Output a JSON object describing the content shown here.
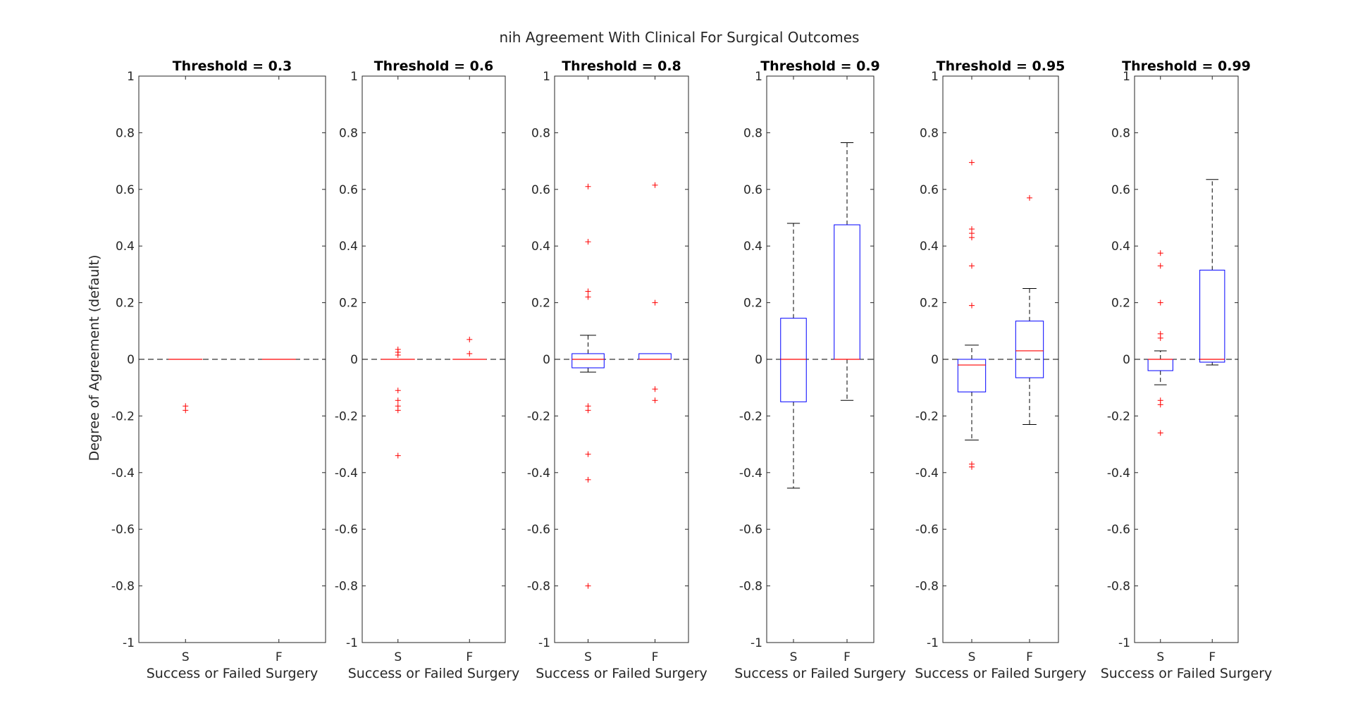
{
  "figure": {
    "title": "nih Agreement With Clinical For Surgical Outcomes",
    "ylabel": "Degree of Agreement (default)"
  },
  "chart_data": [
    {
      "type": "box",
      "title": "Threshold = 0.3",
      "xlabel": "Success or Failed Surgery",
      "ylabel": "Degree of Agreement (default)",
      "categories": [
        "S",
        "F"
      ],
      "ylim": [
        -1,
        1
      ],
      "yticks": [
        "-1",
        "-0.8",
        "-0.6",
        "-0.4",
        "-0.2",
        "0",
        "0.2",
        "0.4",
        "0.6",
        "0.8",
        "1"
      ],
      "reference_line": 0,
      "boxes": [
        {
          "category": "S",
          "q1": 0,
          "median": 0,
          "q3": 0,
          "whisker_low": 0,
          "whisker_high": 0,
          "outliers": [
            -0.165,
            -0.18
          ]
        },
        {
          "category": "F",
          "q1": 0,
          "median": 0,
          "q3": 0,
          "whisker_low": 0,
          "whisker_high": 0,
          "outliers": []
        }
      ]
    },
    {
      "type": "box",
      "title": "Threshold = 0.6",
      "xlabel": "Success or Failed Surgery",
      "categories": [
        "S",
        "F"
      ],
      "ylim": [
        -1,
        1
      ],
      "yticks": [
        "-1",
        "-0.8",
        "-0.6",
        "-0.4",
        "-0.2",
        "0",
        "0.2",
        "0.4",
        "0.6",
        "0.8",
        "1"
      ],
      "reference_line": 0,
      "boxes": [
        {
          "category": "S",
          "q1": 0,
          "median": 0,
          "q3": 0,
          "whisker_low": 0,
          "whisker_high": 0,
          "outliers": [
            0.035,
            0.025,
            0.015,
            -0.11,
            -0.145,
            -0.165,
            -0.18,
            -0.34
          ]
        },
        {
          "category": "F",
          "q1": 0,
          "median": 0,
          "q3": 0,
          "whisker_low": 0,
          "whisker_high": 0,
          "outliers": [
            0.07,
            0.02
          ]
        }
      ]
    },
    {
      "type": "box",
      "title": "Threshold = 0.8",
      "xlabel": "Success or Failed Surgery",
      "categories": [
        "S",
        "F"
      ],
      "ylim": [
        -1,
        1
      ],
      "yticks": [
        "-1",
        "-0.8",
        "-0.6",
        "-0.4",
        "-0.2",
        "0",
        "0.2",
        "0.4",
        "0.6",
        "0.8",
        "1"
      ],
      "reference_line": 0,
      "boxes": [
        {
          "category": "S",
          "q1": -0.03,
          "median": 0,
          "q3": 0.02,
          "whisker_low": -0.045,
          "whisker_high": 0.085,
          "outliers": [
            0.61,
            0.415,
            0.24,
            0.22,
            -0.165,
            -0.18,
            -0.335,
            -0.425,
            -0.8
          ]
        },
        {
          "category": "F",
          "q1": 0,
          "median": 0,
          "q3": 0.02,
          "whisker_low": 0,
          "whisker_high": 0.02,
          "outliers": [
            0.615,
            0.2,
            -0.105,
            -0.145
          ]
        }
      ]
    },
    {
      "type": "box",
      "title": "Threshold = 0.9",
      "xlabel": "Success or Failed Surgery",
      "categories": [
        "S",
        "F"
      ],
      "ylim": [
        -1,
        1
      ],
      "yticks": [
        "-1",
        "-0.8",
        "-0.6",
        "-0.4",
        "-0.2",
        "0",
        "0.2",
        "0.4",
        "0.6",
        "0.8",
        "1"
      ],
      "reference_line": 0,
      "boxes": [
        {
          "category": "S",
          "q1": -0.15,
          "median": 0,
          "q3": 0.145,
          "whisker_low": -0.455,
          "whisker_high": 0.48,
          "outliers": []
        },
        {
          "category": "F",
          "q1": 0,
          "median": 0,
          "q3": 0.475,
          "whisker_low": -0.145,
          "whisker_high": 0.765,
          "outliers": []
        }
      ]
    },
    {
      "type": "box",
      "title": "Threshold = 0.95",
      "xlabel": "Success or Failed Surgery",
      "categories": [
        "S",
        "F"
      ],
      "ylim": [
        -1,
        1
      ],
      "yticks": [
        "-1",
        "-0.8",
        "-0.6",
        "-0.4",
        "-0.2",
        "0",
        "0.2",
        "0.4",
        "0.6",
        "0.8",
        "1"
      ],
      "reference_line": 0,
      "boxes": [
        {
          "category": "S",
          "q1": -0.115,
          "median": -0.02,
          "q3": 0,
          "whisker_low": -0.285,
          "whisker_high": 0.05,
          "outliers": [
            0.695,
            0.46,
            0.445,
            0.43,
            0.33,
            0.19,
            -0.37,
            -0.38
          ]
        },
        {
          "category": "F",
          "q1": -0.065,
          "median": 0.03,
          "q3": 0.135,
          "whisker_low": -0.23,
          "whisker_high": 0.25,
          "outliers": [
            0.57
          ]
        }
      ]
    },
    {
      "type": "box",
      "title": "Threshold = 0.99",
      "xlabel": "Success or Failed Surgery",
      "categories": [
        "S",
        "F"
      ],
      "ylim": [
        -1,
        1
      ],
      "yticks": [
        "-1",
        "-0.8",
        "-0.6",
        "-0.4",
        "-0.2",
        "0",
        "0.2",
        "0.4",
        "0.6",
        "0.8",
        "1"
      ],
      "reference_line": 0,
      "boxes": [
        {
          "category": "S",
          "q1": -0.04,
          "median": 0,
          "q3": 0,
          "whisker_low": -0.09,
          "whisker_high": 0.03,
          "outliers": [
            0.375,
            0.33,
            0.2,
            0.09,
            0.075,
            -0.145,
            -0.16,
            -0.26
          ]
        },
        {
          "category": "F",
          "q1": -0.01,
          "median": 0,
          "q3": 0.315,
          "whisker_low": -0.02,
          "whisker_high": 0.635,
          "outliers": []
        }
      ]
    }
  ],
  "colors": {
    "box": "#0000ff",
    "median": "#ff0000",
    "outlier": "#ff0000",
    "whisker": "#000000",
    "reference_line": "#000000"
  }
}
